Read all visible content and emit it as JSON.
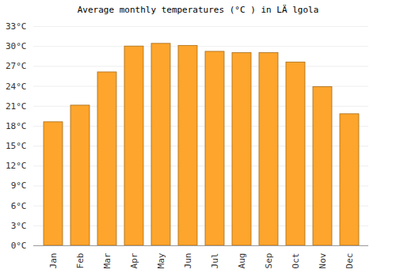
{
  "chart_data": {
    "type": "bar",
    "title": "Average monthly temperatures (°C ) in LÄ lgola",
    "categories": [
      "Jan",
      "Feb",
      "Mar",
      "Apr",
      "May",
      "Jun",
      "Jul",
      "Aug",
      "Sep",
      "Oct",
      "Nov",
      "Dec"
    ],
    "values": [
      18.6,
      21.1,
      26.1,
      30.0,
      30.4,
      30.1,
      29.2,
      29.0,
      29.0,
      27.6,
      23.9,
      19.8
    ],
    "color": "#fda52c",
    "ylim": [
      0,
      33
    ],
    "yticks": [
      {
        "value": 0,
        "label": "0°C"
      },
      {
        "value": 3,
        "label": "3°C"
      },
      {
        "value": 6,
        "label": "6°C"
      },
      {
        "value": 9,
        "label": "9°C"
      },
      {
        "value": 12,
        "label": "12°C"
      },
      {
        "value": 15,
        "label": "15°C"
      },
      {
        "value": 18,
        "label": "18°C"
      },
      {
        "value": 21,
        "label": "21°C"
      },
      {
        "value": 24,
        "label": "24°C"
      },
      {
        "value": 27,
        "label": "27°C"
      },
      {
        "value": 30,
        "label": "30°C"
      },
      {
        "value": 33,
        "label": "33°C"
      }
    ],
    "grid": true
  }
}
